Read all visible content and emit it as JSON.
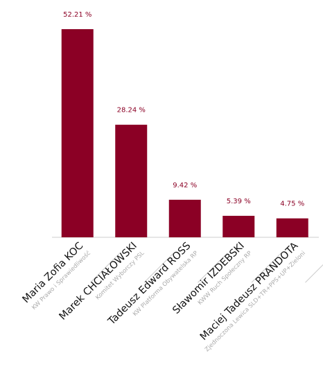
{
  "chart_data": {
    "type": "bar",
    "categories": [
      "Maria Zofia KOC",
      "Marek CHCIAŁOWSKI",
      "Tadeusz Edward ROSS",
      "Sławomir IZDEBSKI",
      "Maciej Tadeusz PRANDOTA"
    ],
    "committees": [
      "KW Prawo i Sprawiedliwość",
      "Komitet Wyborczy PSL",
      "KW Platforma Obywatelska RP",
      "KWW Ruch Społeczny RP",
      "Zjednoczona Lewica SLD+TR+PPS+UP+Zieloni"
    ],
    "values": [
      52.21,
      28.24,
      9.42,
      5.39,
      4.75
    ],
    "value_labels": [
      "52.21 %",
      "28.24 %",
      "9.42 %",
      "5.39 %",
      "4.75 %"
    ],
    "color": "#8b0025",
    "ylim": [
      0,
      55
    ]
  }
}
